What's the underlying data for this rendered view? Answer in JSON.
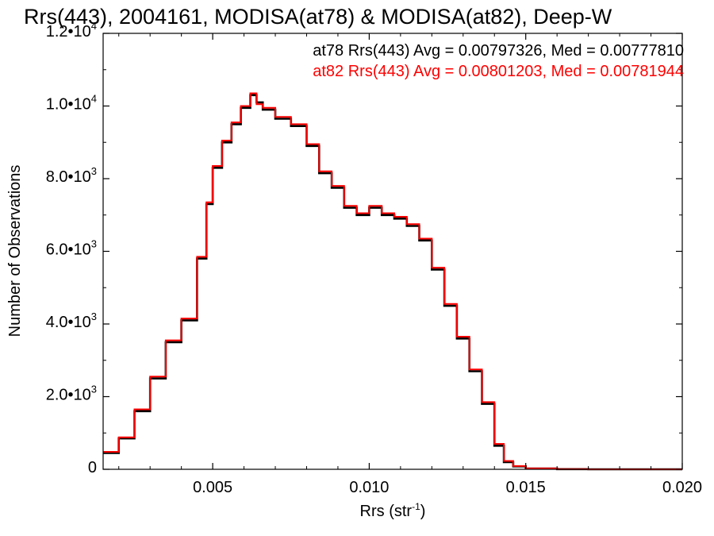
{
  "chart_data": {
    "type": "line",
    "title": "Rrs(443), 2004161, MODISA(at78) & MODISA(at82), Deep-W",
    "xlabel": "Rrs (str",
    "xlabel_sup": "-1",
    "xlabel_close": ")",
    "ylabel": "Number of Observations",
    "xlim": [
      0.0015,
      0.02
    ],
    "ylim": [
      0,
      12000
    ],
    "x_ticks": [
      {
        "value": 0.005,
        "label": "0.005"
      },
      {
        "value": 0.01,
        "label": "0.010"
      },
      {
        "value": 0.015,
        "label": "0.015"
      },
      {
        "value": 0.02,
        "label": "0.020"
      }
    ],
    "y_ticks": [
      {
        "value": 0,
        "mant": "0",
        "exp": ""
      },
      {
        "value": 2000,
        "mant": "2.0•10",
        "exp": "3"
      },
      {
        "value": 4000,
        "mant": "4.0•10",
        "exp": "3"
      },
      {
        "value": 6000,
        "mant": "6.0•10",
        "exp": "3"
      },
      {
        "value": 8000,
        "mant": "8.0•10",
        "exp": "3"
      },
      {
        "value": 10000,
        "mant": "1.0•10",
        "exp": "4"
      },
      {
        "value": 12000,
        "mant": "1.2•10",
        "exp": "4"
      }
    ],
    "grid": false,
    "legend_position": "top-right",
    "series": [
      {
        "name": "at78",
        "color": "#000000",
        "stats_label": "at78 Rrs(443) Avg = 0.00797326, Med = 0.00777810",
        "x": [
          0.0015,
          0.002,
          0.0025,
          0.003,
          0.0035,
          0.004,
          0.0045,
          0.0048,
          0.005,
          0.0053,
          0.0056,
          0.0059,
          0.0062,
          0.0064,
          0.0066,
          0.007,
          0.0075,
          0.008,
          0.0084,
          0.0088,
          0.0092,
          0.0096,
          0.01,
          0.0104,
          0.0108,
          0.0112,
          0.0116,
          0.012,
          0.0124,
          0.0128,
          0.0132,
          0.0136,
          0.014,
          0.0143,
          0.0146,
          0.015,
          0.016,
          0.017,
          0.018,
          0.019,
          0.02
        ],
        "y": [
          450,
          850,
          1600,
          2500,
          3500,
          4100,
          5800,
          7300,
          8300,
          9000,
          9500,
          9950,
          10300,
          10100,
          9900,
          9650,
          9450,
          8900,
          8150,
          7750,
          7200,
          7000,
          7200,
          7000,
          6900,
          6700,
          6300,
          5500,
          4500,
          3600,
          2700,
          1800,
          650,
          200,
          80,
          20,
          5,
          0,
          0,
          0,
          0
        ]
      },
      {
        "name": "at82",
        "color": "#ff0000",
        "stats_label": "at82 Rrs(443) Avg = 0.00801203, Med = 0.00781944",
        "x": [
          0.0015,
          0.002,
          0.0025,
          0.003,
          0.0035,
          0.004,
          0.0045,
          0.0048,
          0.005,
          0.0053,
          0.0056,
          0.0059,
          0.0062,
          0.0064,
          0.0066,
          0.007,
          0.0075,
          0.008,
          0.0084,
          0.0088,
          0.0092,
          0.0096,
          0.01,
          0.0104,
          0.0108,
          0.0112,
          0.0116,
          0.012,
          0.0124,
          0.0128,
          0.0132,
          0.0136,
          0.014,
          0.0143,
          0.0146,
          0.015,
          0.016,
          0.017,
          0.018,
          0.019,
          0.02
        ],
        "y": [
          480,
          880,
          1650,
          2550,
          3550,
          4150,
          5850,
          7350,
          8350,
          9050,
          9550,
          10000,
          10350,
          10050,
          9950,
          9700,
          9500,
          8950,
          8200,
          7800,
          7250,
          7050,
          7250,
          7050,
          6950,
          6750,
          6350,
          5550,
          4550,
          3650,
          2750,
          1850,
          700,
          230,
          90,
          25,
          6,
          0,
          0,
          0,
          0
        ]
      }
    ]
  }
}
